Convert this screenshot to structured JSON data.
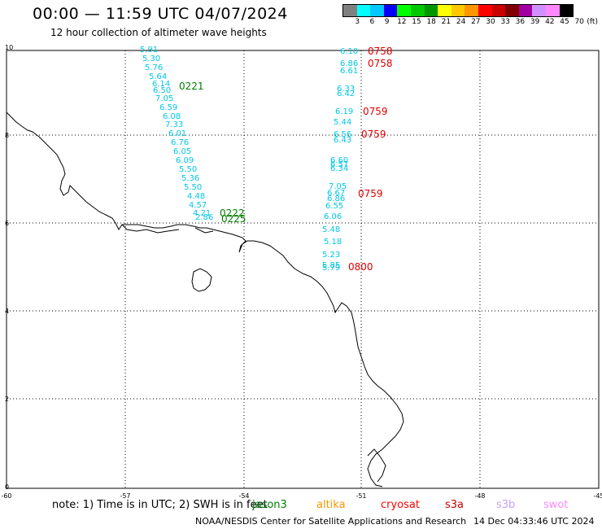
{
  "header": {
    "title": "00:00 — 11:59 UTC 04/07/2024",
    "subtitle": "12 hour collection of altimeter wave heights"
  },
  "scale": {
    "unit": "(ft)",
    "labels": [
      "3",
      "6",
      "9",
      "12",
      "15",
      "18",
      "21",
      "24",
      "27",
      "30",
      "33",
      "36",
      "39",
      "42",
      "45",
      "70"
    ],
    "colors": [
      "#808080",
      "#00ffff",
      "#00c8ff",
      "#0000ff",
      "#00ff00",
      "#00c800",
      "#009600",
      "#ffff00",
      "#ffc800",
      "#ff9600",
      "#ff0000",
      "#c80000",
      "#800000",
      "#a000a0",
      "#d090ff",
      "#ff88ff",
      "#000000"
    ]
  },
  "axes": {
    "x_ticks": [
      "-60",
      "-57",
      "-54",
      "-51",
      "-48",
      "-45"
    ],
    "y_ticks": [
      "10",
      "8",
      "6",
      "4",
      "2",
      "0"
    ]
  },
  "passes": [
    {
      "color": "#00c8e6",
      "label": {
        "text": "0221",
        "color": "#008000"
      },
      "values": [
        "5.91",
        "5.30",
        "5.76",
        "5.64",
        "6.14",
        "6.50",
        "7.05",
        "6.59",
        "6.08",
        "7.33",
        "6.01",
        "6.76",
        "6.05",
        "6.09",
        "5.50",
        "5.36",
        "5.50",
        "4.48",
        "4.57",
        "4.21",
        "2.86"
      ]
    },
    {
      "color": "#00c8e6",
      "label": {
        "text": "0222",
        "color": "#008000"
      },
      "values": []
    },
    {
      "color": "#00c8e6",
      "label": {
        "text": "0225",
        "color": "#008000"
      },
      "values": []
    },
    {
      "color": "#00c8e6",
      "values": [
        "6.10",
        "6.86",
        "6.61",
        "6.33",
        "6.42",
        "6.19",
        "5.44",
        "6.56",
        "6.43",
        "6.60",
        "6.57",
        "6.34",
        "7.05",
        "6.67",
        "6.86",
        "6.55",
        "6.06",
        "5.48",
        "5.18",
        "5.23",
        "5.85",
        "5.79"
      ]
    }
  ],
  "red_labels": [
    "0758",
    "0758",
    "0759",
    "0759",
    "0759",
    "0800"
  ],
  "note": "note:  1) Time is in UTC; 2) SWH is in feet",
  "satellites": [
    {
      "name": "jason3",
      "color": "#008000"
    },
    {
      "name": "altika",
      "color": "#ff9600"
    },
    {
      "name": "cryosat",
      "color": "#ff0000"
    },
    {
      "name": "s3a",
      "color": "#c80000"
    },
    {
      "name": "s3b",
      "color": "#c8a0ff"
    },
    {
      "name": "swot",
      "color": "#ff88ff"
    }
  ],
  "footer": {
    "org": "NOAA/NESDIS Center for Satellite Applications and Research",
    "timestamp": "14 Dec 04:33:46 UTC 2024"
  }
}
